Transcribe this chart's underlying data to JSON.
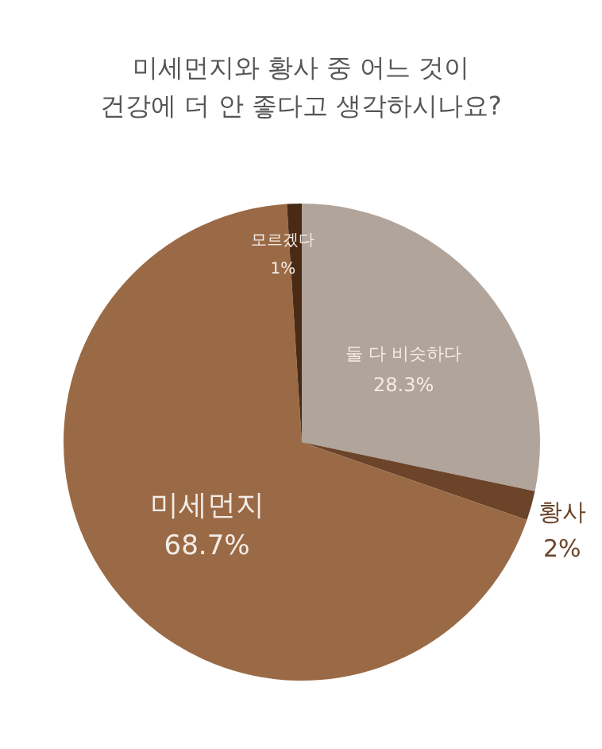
{
  "chart_data": {
    "type": "pie",
    "title": "미세먼지와 황사 중 어느 것이\n건강에 더 안 좋다고 생각하시나요?",
    "categories": [
      "둘 다 비슷하다",
      "황사",
      "미세먼지",
      "모르겠다"
    ],
    "values": [
      28.3,
      2,
      68.7,
      1
    ],
    "colors": [
      "#b0a49b",
      "#6b4429",
      "#9a6a46",
      "#4a2a14"
    ],
    "value_labels": [
      "28.3%",
      "2%",
      "68.7%",
      "1%"
    ]
  }
}
